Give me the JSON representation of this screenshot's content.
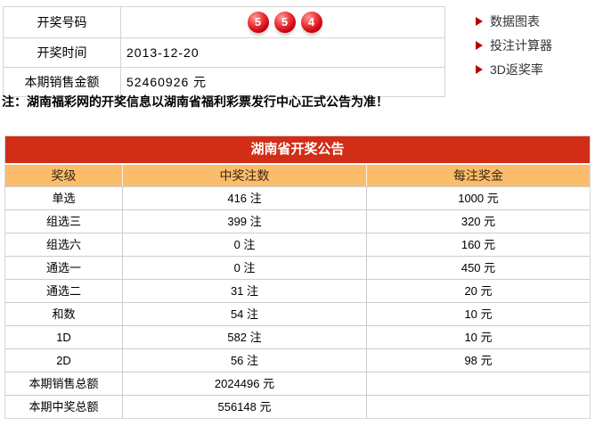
{
  "info_panel": {
    "rows": [
      {
        "label": "开奖号码",
        "value": ""
      },
      {
        "label": "开奖时间",
        "value": "2013-12-20"
      },
      {
        "label": "本期销售金额",
        "value": "52460926 元"
      }
    ],
    "balls": [
      "5",
      "5",
      "4"
    ]
  },
  "side_menu": {
    "items": [
      {
        "icon": "red-arrow-icon",
        "label": "数据图表"
      },
      {
        "icon": "red-arrow-icon",
        "label": "投注计算器"
      },
      {
        "icon": "red-arrow-icon",
        "label": "3D返奖率"
      }
    ]
  },
  "note": "注：湖南福彩网的开奖信息以湖南省福利彩票发行中心正式公告为准！",
  "announcement_table": {
    "title": "湖南省开奖公告",
    "columns": [
      "奖级",
      "中奖注数",
      "每注奖金"
    ],
    "rows": [
      {
        "level": "单选",
        "count": "416 注",
        "prize": "1000 元"
      },
      {
        "level": "组选三",
        "count": "399 注",
        "prize": "320 元"
      },
      {
        "level": "组选六",
        "count": "0 注",
        "prize": "160 元"
      },
      {
        "level": "通选一",
        "count": "0 注",
        "prize": "450 元"
      },
      {
        "level": "通选二",
        "count": "31 注",
        "prize": "20 元"
      },
      {
        "level": "和数",
        "count": "54 注",
        "prize": "10 元"
      },
      {
        "level": "1D",
        "count": "582 注",
        "prize": "10 元"
      },
      {
        "level": "2D",
        "count": "56 注",
        "prize": "98 元"
      },
      {
        "level": "本期销售总额",
        "count": "2024496 元",
        "prize": ""
      },
      {
        "level": "本期中奖总额",
        "count": "556148 元",
        "prize": ""
      }
    ]
  },
  "colors": {
    "header_red": "#d22d17",
    "header_orange": "#fbbc6c",
    "menu_arrow_red": "#bb0000",
    "ball_red": "#cc0011",
    "border_gray": "#cccccc"
  }
}
